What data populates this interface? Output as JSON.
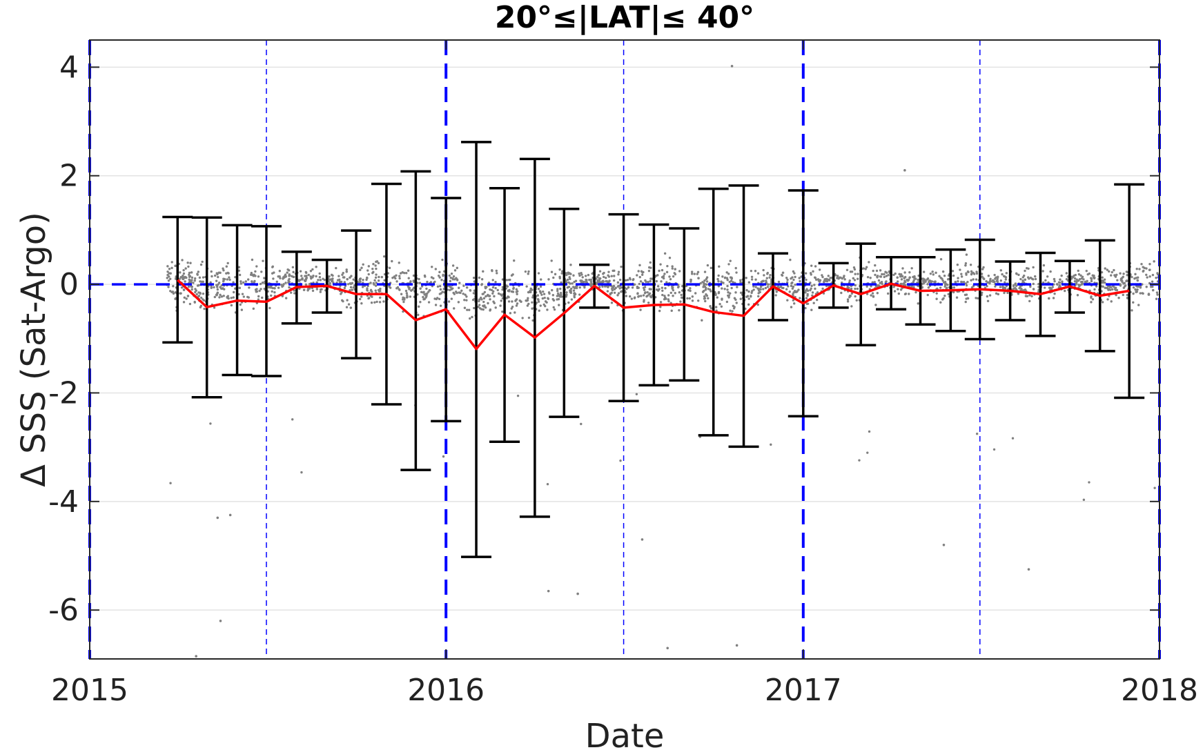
{
  "chart_data": {
    "type": "line",
    "title": "20°≤|LAT|≤ 40°",
    "xlabel": "Date",
    "ylabel": "Δ SSS (Sat-Argo)",
    "xlim": [
      "2015-01-01",
      "2018-01-01"
    ],
    "ylim": [
      -6.9,
      4.5
    ],
    "x_ticks": [
      "2015",
      "2016",
      "2017",
      "2018"
    ],
    "y_ticks": [
      4,
      2,
      0,
      -2,
      -4,
      -6
    ],
    "grid": true,
    "zero_line": {
      "y": 0,
      "color": "#0000ff",
      "style": "dashed"
    },
    "year_boundaries": [
      "2015-01-01",
      "2016-01-01",
      "2017-01-01",
      "2018-01-01"
    ],
    "mid_year_lines": [
      "2015-07-01",
      "2016-07-01",
      "2017-07-01"
    ],
    "series": [
      {
        "type": "line-with-errorbars",
        "color": "#ff0000",
        "errorbar_color": "#000000",
        "points": [
          {
            "x": "2015-04-01",
            "y": 0.08,
            "low": -1.07,
            "high": 1.24
          },
          {
            "x": "2015-05-01",
            "y": -0.42,
            "low": -2.08,
            "high": 1.23
          },
          {
            "x": "2015-06-01",
            "y": -0.3,
            "low": -1.67,
            "high": 1.09
          },
          {
            "x": "2015-07-01",
            "y": -0.32,
            "low": -1.69,
            "high": 1.07
          },
          {
            "x": "2015-08-01",
            "y": -0.05,
            "low": -0.72,
            "high": 0.6
          },
          {
            "x": "2015-09-01",
            "y": -0.03,
            "low": -0.52,
            "high": 0.45
          },
          {
            "x": "2015-10-01",
            "y": -0.18,
            "low": -1.36,
            "high": 0.99
          },
          {
            "x": "2015-11-01",
            "y": -0.18,
            "low": -2.21,
            "high": 1.85
          },
          {
            "x": "2015-12-01",
            "y": -0.66,
            "low": -3.42,
            "high": 2.08
          },
          {
            "x": "2016-01-01",
            "y": -0.46,
            "low": -2.52,
            "high": 1.59
          },
          {
            "x": "2016-02-01",
            "y": -1.19,
            "low": -5.02,
            "high": 2.62
          },
          {
            "x": "2016-03-01",
            "y": -0.56,
            "low": -2.9,
            "high": 1.77
          },
          {
            "x": "2016-04-01",
            "y": -0.98,
            "low": -4.28,
            "high": 2.31
          },
          {
            "x": "2016-05-01",
            "y": -0.53,
            "low": -2.44,
            "high": 1.39
          },
          {
            "x": "2016-06-01",
            "y": -0.03,
            "low": -0.43,
            "high": 0.36
          },
          {
            "x": "2016-07-01",
            "y": -0.43,
            "low": -2.15,
            "high": 1.29
          },
          {
            "x": "2016-08-01",
            "y": -0.38,
            "low": -1.86,
            "high": 1.1
          },
          {
            "x": "2016-09-01",
            "y": -0.37,
            "low": -1.77,
            "high": 1.03
          },
          {
            "x": "2016-10-01",
            "y": -0.51,
            "low": -2.78,
            "high": 1.76
          },
          {
            "x": "2016-11-01",
            "y": -0.58,
            "low": -2.99,
            "high": 1.82
          },
          {
            "x": "2016-12-01",
            "y": -0.04,
            "low": -0.66,
            "high": 0.57
          },
          {
            "x": "2017-01-01",
            "y": -0.35,
            "low": -2.43,
            "high": 1.73
          },
          {
            "x": "2017-02-01",
            "y": -0.02,
            "low": -0.43,
            "high": 0.39
          },
          {
            "x": "2017-03-01",
            "y": -0.18,
            "low": -1.12,
            "high": 0.75
          },
          {
            "x": "2017-04-01",
            "y": 0.01,
            "low": -0.46,
            "high": 0.5
          },
          {
            "x": "2017-05-01",
            "y": -0.12,
            "low": -0.74,
            "high": 0.5
          },
          {
            "x": "2017-06-01",
            "y": -0.11,
            "low": -0.86,
            "high": 0.64
          },
          {
            "x": "2017-07-01",
            "y": -0.09,
            "low": -1.01,
            "high": 0.82
          },
          {
            "x": "2017-08-01",
            "y": -0.12,
            "low": -0.66,
            "high": 0.42
          },
          {
            "x": "2017-09-01",
            "y": -0.18,
            "low": -0.95,
            "high": 0.58
          },
          {
            "x": "2017-10-01",
            "y": -0.04,
            "low": -0.52,
            "high": 0.43
          },
          {
            "x": "2017-11-01",
            "y": -0.21,
            "low": -1.23,
            "high": 0.81
          },
          {
            "x": "2017-12-01",
            "y": -0.12,
            "low": -2.09,
            "high": 1.84
          }
        ]
      },
      {
        "type": "scatter",
        "color": "#808080",
        "x_range": [
          "2015-03-20",
          "2017-12-31"
        ],
        "note_points": [
          {
            "x": "2016-10-20",
            "y": 4.02
          },
          {
            "x": "2015-04-20",
            "y": -6.85
          },
          {
            "x": "2015-05-15",
            "y": -6.2
          },
          {
            "x": "2016-08-15",
            "y": -6.7
          },
          {
            "x": "2016-10-25",
            "y": -6.65
          },
          {
            "x": "2017-05-25",
            "y": -4.8
          },
          {
            "x": "2017-08-20",
            "y": -5.25
          },
          {
            "x": "2016-04-15",
            "y": -5.65
          },
          {
            "x": "2016-05-15",
            "y": -5.7
          },
          {
            "x": "2017-04-15",
            "y": 2.1
          },
          {
            "x": "2015-05-12",
            "y": -4.3
          },
          {
            "x": "2015-05-25",
            "y": -4.25
          },
          {
            "x": "2016-07-20",
            "y": -4.7
          }
        ]
      }
    ]
  }
}
